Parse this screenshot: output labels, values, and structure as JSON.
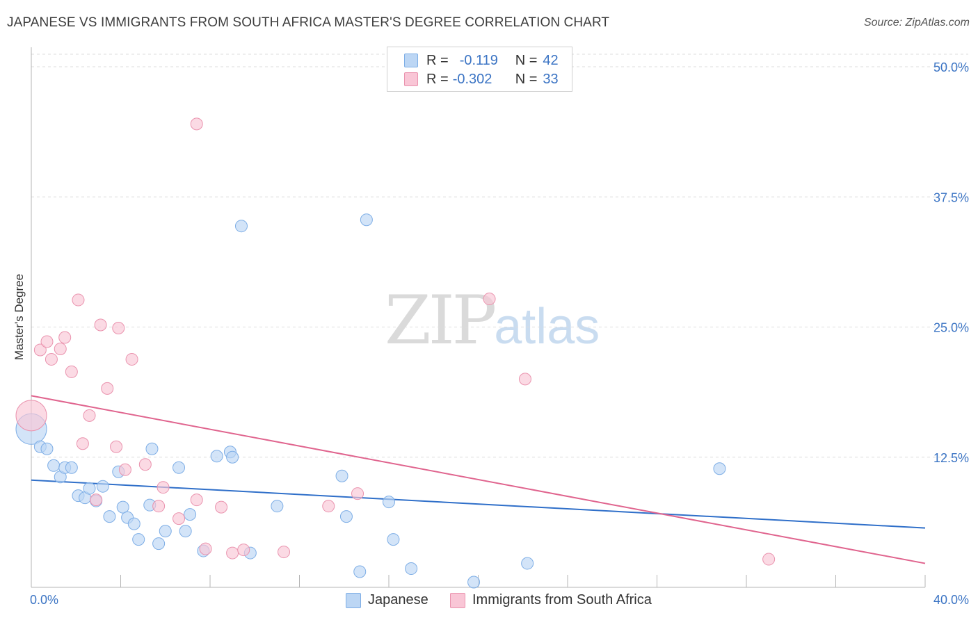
{
  "title": "JAPANESE VS IMMIGRANTS FROM SOUTH AFRICA MASTER'S DEGREE CORRELATION CHART",
  "source": "Source: ZipAtlas.com",
  "watermark": {
    "zip": "ZIP",
    "atlas": "atlas"
  },
  "legend": {
    "rows": [
      {
        "r_label": "R =",
        "r_value": "-0.119",
        "n_label": "N =",
        "n_value": "42"
      },
      {
        "r_label": "R =",
        "r_value": "-0.302",
        "n_label": "N =",
        "n_value": "33"
      }
    ]
  },
  "colors": {
    "blue_fill": "#bcd6f4",
    "blue_stroke": "#7eaee6",
    "blue_line": "#2f6fc9",
    "pink_fill": "#f9c6d6",
    "pink_stroke": "#ea93ae",
    "pink_line": "#e0648e",
    "grid": "#dcdcdc",
    "tick_text": "#3b74c4"
  },
  "chart_data": {
    "type": "scatter",
    "title": "JAPANESE VS IMMIGRANTS FROM SOUTH AFRICA MASTER'S DEGREE CORRELATION CHART",
    "xlabel": "",
    "ylabel": "Master's Degree",
    "xlim": [
      0,
      40
    ],
    "ylim": [
      0,
      50
    ],
    "x_tick_labels": [
      "0.0%",
      "40.0%"
    ],
    "y_ticks": [
      12.5,
      25.0,
      37.5,
      50.0
    ],
    "y_tick_labels": [
      "12.5%",
      "25.0%",
      "37.5%",
      "50.0%"
    ],
    "grid": true,
    "series": [
      {
        "name": "Japanese",
        "color": "blue",
        "r": -0.119,
        "n": 42,
        "trend": {
          "x": [
            0,
            40
          ],
          "y": [
            10.3,
            5.7
          ]
        },
        "points": [
          {
            "x": 0.0,
            "y": 15.2,
            "big": true
          },
          {
            "x": 0.4,
            "y": 13.5
          },
          {
            "x": 0.7,
            "y": 13.3
          },
          {
            "x": 1.0,
            "y": 11.7
          },
          {
            "x": 1.3,
            "y": 10.6
          },
          {
            "x": 1.5,
            "y": 11.5
          },
          {
            "x": 1.8,
            "y": 11.5
          },
          {
            "x": 2.1,
            "y": 8.8
          },
          {
            "x": 2.4,
            "y": 8.6
          },
          {
            "x": 2.6,
            "y": 9.5
          },
          {
            "x": 2.9,
            "y": 8.3
          },
          {
            "x": 3.2,
            "y": 9.7
          },
          {
            "x": 3.5,
            "y": 6.8
          },
          {
            "x": 3.9,
            "y": 11.1
          },
          {
            "x": 4.1,
            "y": 7.7
          },
          {
            "x": 4.3,
            "y": 6.7
          },
          {
            "x": 4.6,
            "y": 6.1
          },
          {
            "x": 4.8,
            "y": 4.6
          },
          {
            "x": 5.3,
            "y": 7.9
          },
          {
            "x": 5.4,
            "y": 13.3
          },
          {
            "x": 5.7,
            "y": 4.2
          },
          {
            "x": 6.0,
            "y": 5.4
          },
          {
            "x": 6.6,
            "y": 11.5
          },
          {
            "x": 6.9,
            "y": 5.4
          },
          {
            "x": 7.1,
            "y": 7.0
          },
          {
            "x": 7.7,
            "y": 3.5
          },
          {
            "x": 8.3,
            "y": 12.6
          },
          {
            "x": 8.9,
            "y": 13.0
          },
          {
            "x": 9.0,
            "y": 12.5
          },
          {
            "x": 9.4,
            "y": 34.7
          },
          {
            "x": 9.8,
            "y": 3.3
          },
          {
            "x": 11.0,
            "y": 7.8
          },
          {
            "x": 13.9,
            "y": 10.7
          },
          {
            "x": 14.1,
            "y": 6.8
          },
          {
            "x": 15.0,
            "y": 35.3
          },
          {
            "x": 14.7,
            "y": 1.5
          },
          {
            "x": 16.0,
            "y": 8.2
          },
          {
            "x": 16.2,
            "y": 4.6
          },
          {
            "x": 17.0,
            "y": 1.8
          },
          {
            "x": 19.8,
            "y": 0.5
          },
          {
            "x": 22.2,
            "y": 2.3
          },
          {
            "x": 30.8,
            "y": 11.4
          }
        ]
      },
      {
        "name": "Immigrants from South Africa",
        "color": "pink",
        "r": -0.302,
        "n": 33,
        "trend": {
          "x": [
            0,
            40
          ],
          "y": [
            18.4,
            2.3
          ]
        },
        "points": [
          {
            "x": 0.0,
            "y": 16.5,
            "big": true
          },
          {
            "x": 0.4,
            "y": 22.8
          },
          {
            "x": 0.7,
            "y": 23.6
          },
          {
            "x": 0.9,
            "y": 21.9
          },
          {
            "x": 1.3,
            "y": 22.9
          },
          {
            "x": 1.5,
            "y": 24.0
          },
          {
            "x": 1.8,
            "y": 20.7
          },
          {
            "x": 2.1,
            "y": 27.6
          },
          {
            "x": 2.3,
            "y": 13.8
          },
          {
            "x": 2.6,
            "y": 16.5
          },
          {
            "x": 2.9,
            "y": 8.4
          },
          {
            "x": 3.1,
            "y": 25.2
          },
          {
            "x": 3.4,
            "y": 19.1
          },
          {
            "x": 3.8,
            "y": 13.5
          },
          {
            "x": 3.9,
            "y": 24.9
          },
          {
            "x": 4.2,
            "y": 11.3
          },
          {
            "x": 4.5,
            "y": 21.9
          },
          {
            "x": 5.1,
            "y": 11.8
          },
          {
            "x": 5.7,
            "y": 7.8
          },
          {
            "x": 5.9,
            "y": 9.6
          },
          {
            "x": 6.6,
            "y": 6.6
          },
          {
            "x": 7.4,
            "y": 8.4
          },
          {
            "x": 7.8,
            "y": 3.7
          },
          {
            "x": 7.4,
            "y": 44.5
          },
          {
            "x": 8.5,
            "y": 7.7
          },
          {
            "x": 9.0,
            "y": 3.3
          },
          {
            "x": 9.5,
            "y": 3.6
          },
          {
            "x": 11.3,
            "y": 3.4
          },
          {
            "x": 13.3,
            "y": 7.8
          },
          {
            "x": 14.6,
            "y": 9.0
          },
          {
            "x": 20.5,
            "y": 27.7
          },
          {
            "x": 22.1,
            "y": 20.0
          },
          {
            "x": 33.0,
            "y": 2.7
          }
        ]
      }
    ]
  }
}
